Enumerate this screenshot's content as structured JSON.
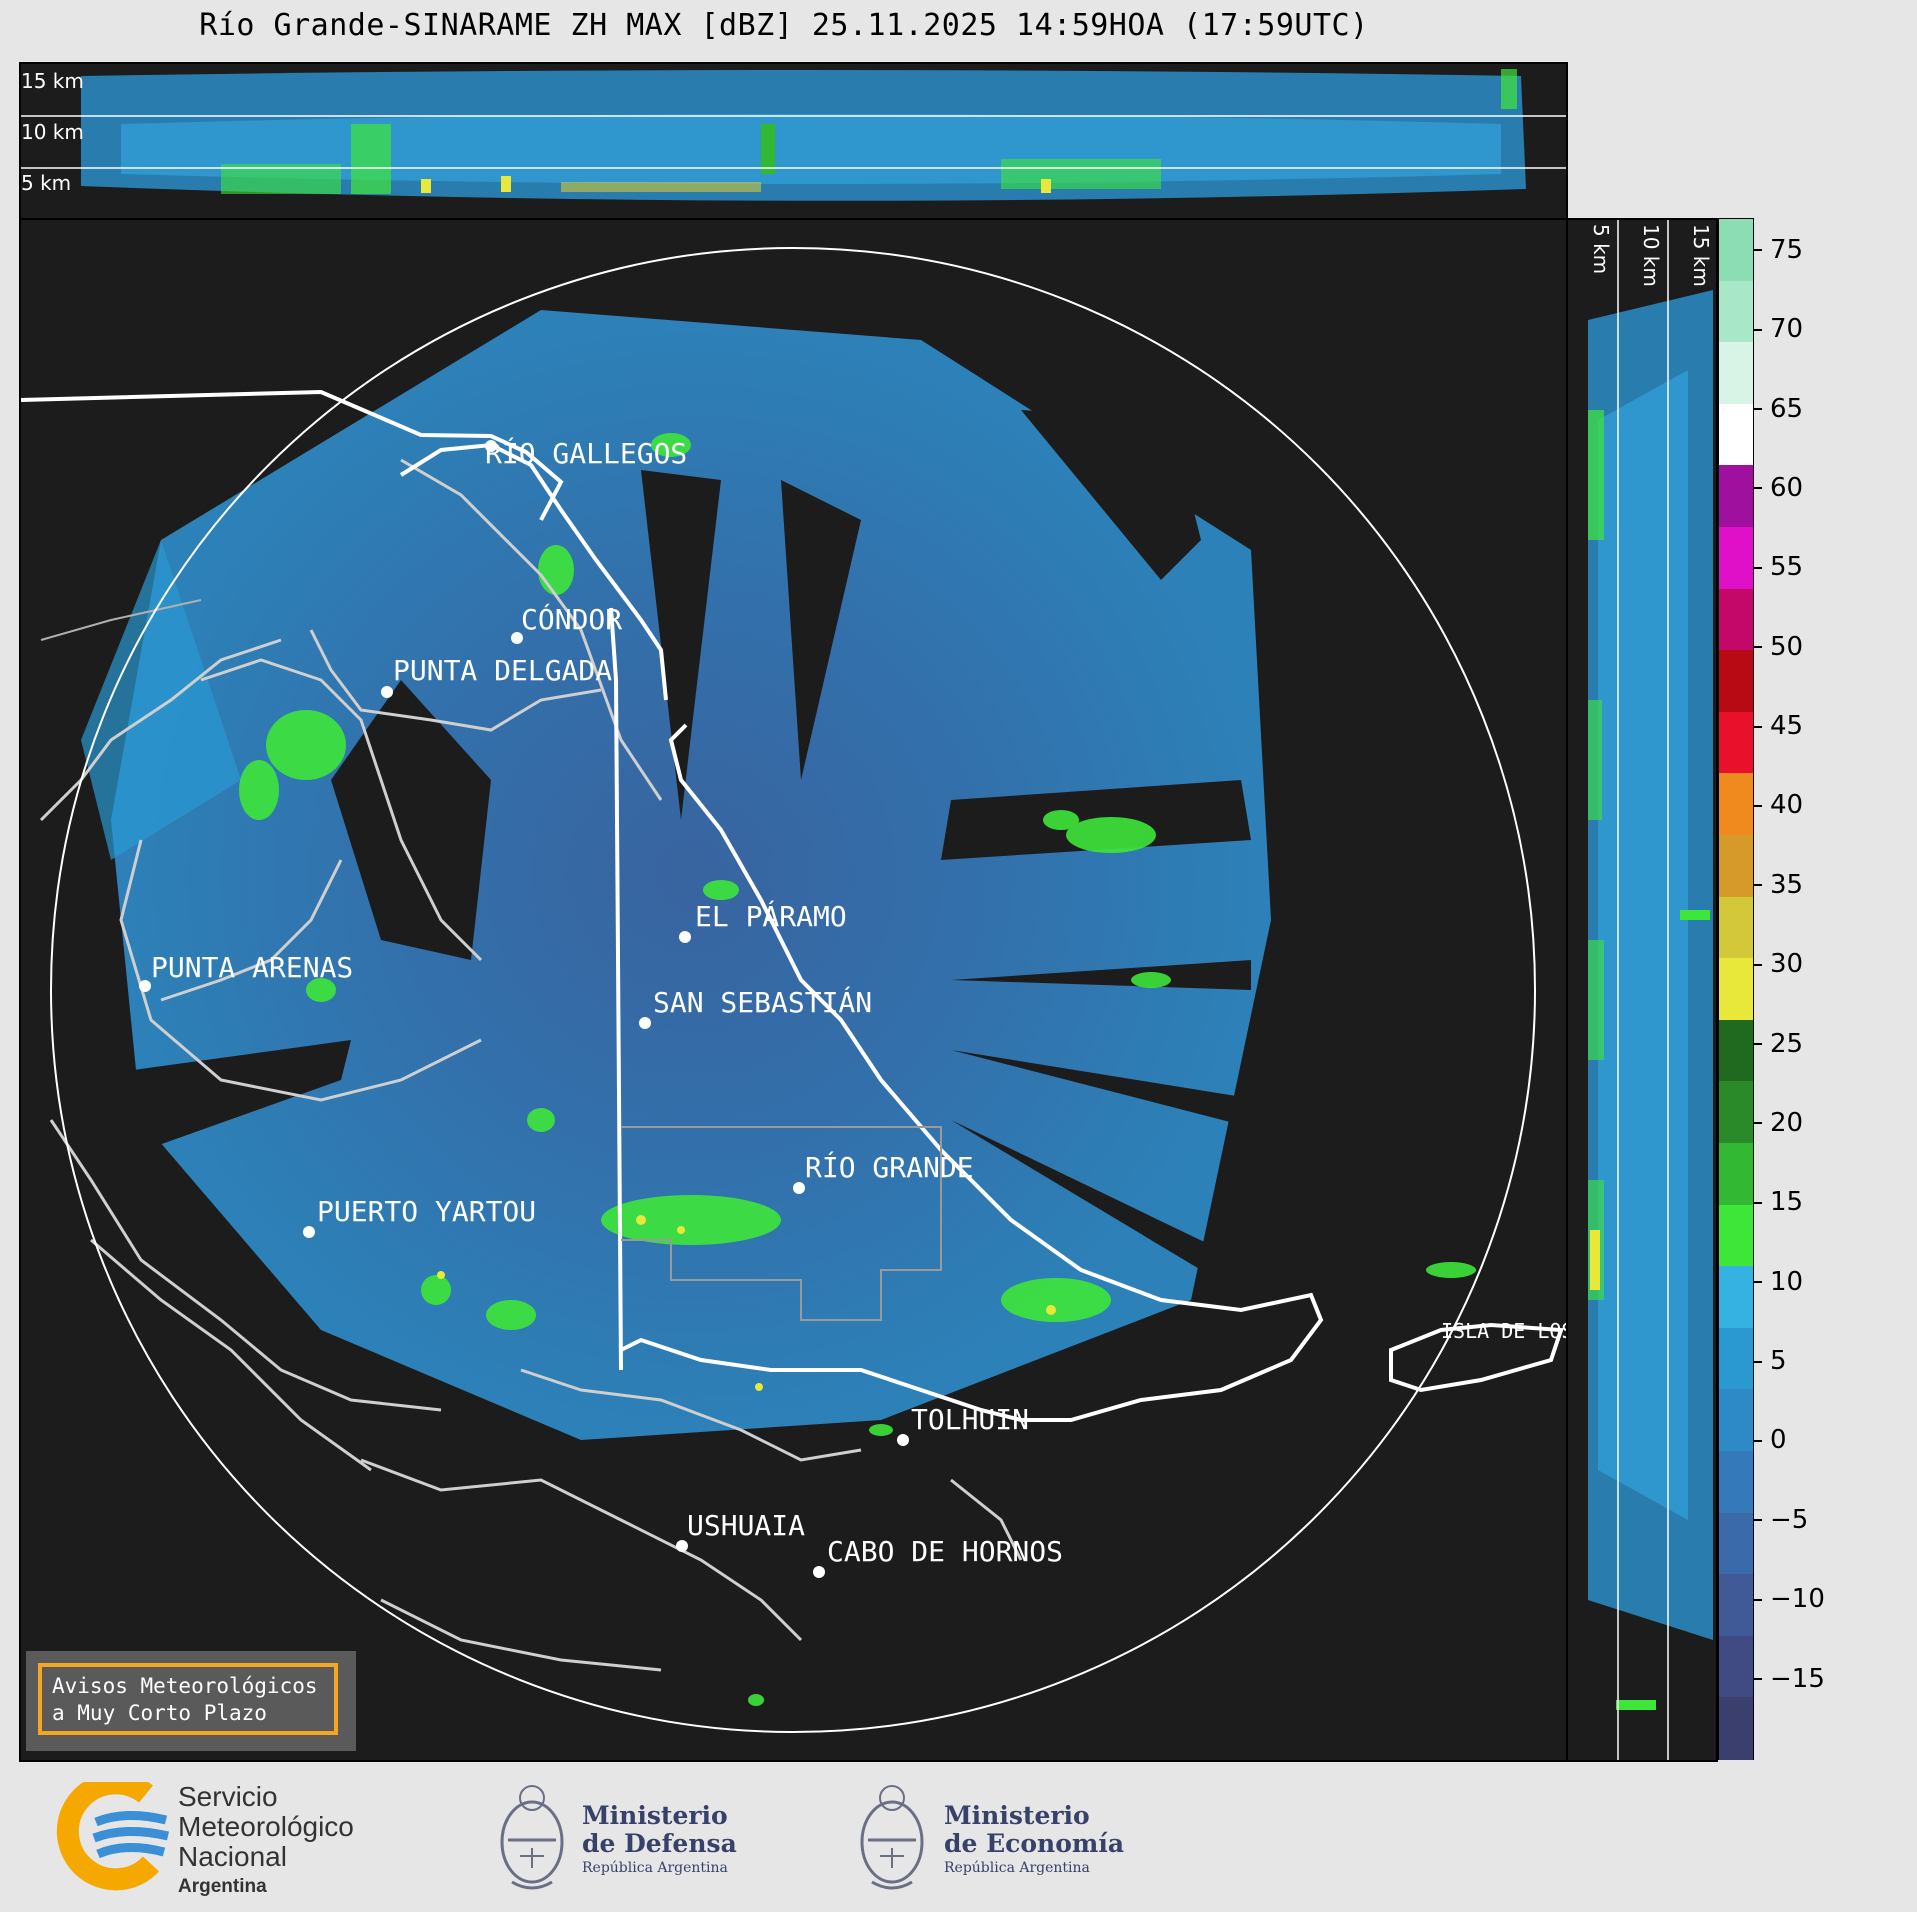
{
  "title": "Río Grande-SINARAME ZH MAX [dBZ] 25.11.2025 14:59HOA (17:59UTC)",
  "top_section": {
    "levels": [
      "15 km",
      "10 km",
      "5 km"
    ]
  },
  "right_section": {
    "levels": [
      "5 km",
      "10 km",
      "15 km"
    ]
  },
  "map": {
    "places": [
      {
        "name": "RÍO GALLEGOS"
      },
      {
        "name": "CÓNDOR"
      },
      {
        "name": "PUNTA DELGADA"
      },
      {
        "name": "EL PÁRAMO"
      },
      {
        "name": "PUNTA ARENAS"
      },
      {
        "name": "SAN SEBASTIÁN"
      },
      {
        "name": "RÍO GRANDE"
      },
      {
        "name": "PUERTO YARTOU"
      },
      {
        "name": "TOLHUIN"
      },
      {
        "name": "USHUAIA"
      },
      {
        "name": "CABO DE HORNOS"
      },
      {
        "name": "ISLA DE LOS ESTADOS"
      }
    ]
  },
  "colorbar": {
    "unit": "dBZ",
    "ticks": [
      "75",
      "70",
      "65",
      "60",
      "55",
      "50",
      "45",
      "40",
      "35",
      "30",
      "25",
      "20",
      "15",
      "10",
      "5",
      "0",
      "−5",
      "−10",
      "−15"
    ],
    "tick_values": [
      75,
      70,
      65,
      60,
      55,
      50,
      45,
      40,
      35,
      30,
      25,
      20,
      15,
      10,
      5,
      0,
      -5,
      -10,
      -15
    ],
    "range": [
      -20,
      77
    ],
    "colors": [
      "#3b3f6e",
      "#3f4b82",
      "#3f5a96",
      "#3b6aab",
      "#3479b9",
      "#2e8ac6",
      "#2a99d2",
      "#35b2e2",
      "#3ee63a",
      "#32b832",
      "#2a8a2a",
      "#1f6a1f",
      "#e8e83a",
      "#d2c83a",
      "#d69a2a",
      "#f08a1e",
      "#e8102a",
      "#b80a14",
      "#c4086a",
      "#e010c8",
      "#a0109e",
      "#ffffff",
      "#d8f4e6",
      "#a8e8c8",
      "#8cdcb4"
    ]
  },
  "warning": {
    "line1": "Avisos Meteorológicos",
    "line2": "a Muy Corto Plazo"
  },
  "logos": {
    "smn": {
      "line1": "Servicio",
      "line2": "Meteorológico",
      "line3": "Nacional",
      "line4": "Argentina"
    },
    "defensa": {
      "line1": "Ministerio",
      "line2": "de Defensa",
      "line3": "República Argentina"
    },
    "economia": {
      "line1": "Ministerio",
      "line2": "de Economía",
      "line3": "República Argentina"
    }
  }
}
